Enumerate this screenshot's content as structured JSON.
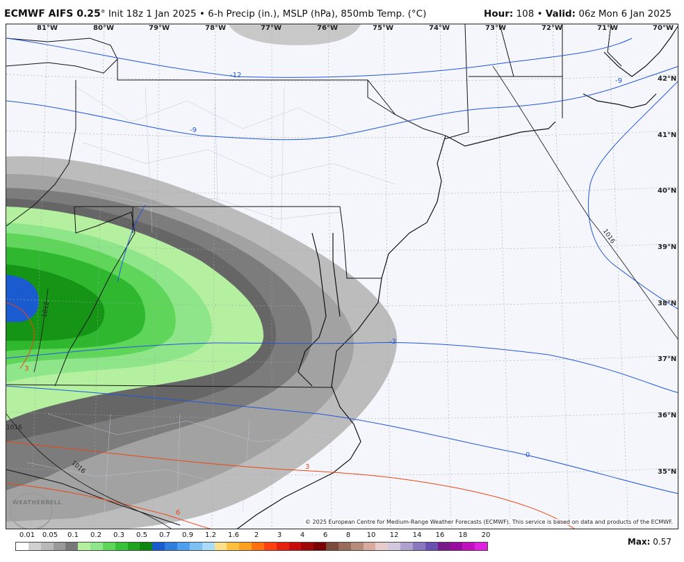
{
  "header": {
    "model": "ECMWF AIFS 0.25",
    "degree": "°",
    "subtitle": "Init 18z 1 Jan 2025 • 6-h Precip (in.), MSLP (hPa), 850mb Temp. (°C)",
    "hour_label": "Hour:",
    "hour_value": "108",
    "valid_label": "Valid:",
    "valid_value": "06z Mon 6 Jan 2025"
  },
  "lon_labels": [
    "81°W",
    "80°W",
    "79°W",
    "78°W",
    "77°W",
    "76°W",
    "75°W",
    "74°W",
    "73°W",
    "72°W",
    "71°W",
    "70°W"
  ],
  "lat_labels": [
    "42°N",
    "41°N",
    "40°N",
    "39°N",
    "38°N",
    "37°N",
    "36°N",
    "35°N"
  ],
  "contour_labels": {
    "temp_blue": [
      "-12",
      "-9",
      "-9",
      "-3",
      "0"
    ],
    "temp_red": [
      "3",
      "3",
      "6"
    ],
    "pressure": [
      "1016",
      "1016",
      "1012",
      "1016"
    ]
  },
  "copyright": "© 2025 European Centre for Medium-Range Weather Forecasts (ECMWF). This service is based on data and products of the ECMWF.",
  "logo": {
    "text": "WEATHERBELL"
  },
  "legend": {
    "ticks": [
      "0.01",
      "0.05",
      "0.1",
      "0.2",
      "0.3",
      "0.5",
      "0.7",
      "0.9",
      "1.2",
      "1.6",
      "2",
      "3",
      "4",
      "6",
      "8",
      "10",
      "12",
      "14",
      "16",
      "18",
      "20"
    ],
    "colors": [
      "#ffffff",
      "#d0d0d0",
      "#b8b8b8",
      "#9a9a9a",
      "#787878",
      "#b4f0a0",
      "#8fe68a",
      "#5fd65a",
      "#38c23a",
      "#1fa31f",
      "#0e860e",
      "#1a5ccf",
      "#2f7fe0",
      "#4ea0ee",
      "#7cc0f4",
      "#a8dcf8",
      "#ffe08a",
      "#ffc040",
      "#ffa020",
      "#ff7010",
      "#ff4010",
      "#e82010",
      "#c80c0c",
      "#a00808",
      "#7a0404",
      "#7a4a3a",
      "#9a6a5a",
      "#b88a7a",
      "#d8aaa0",
      "#e8cccc",
      "#d4c8e0",
      "#b0a0d0",
      "#8a78c0",
      "#6a50b0",
      "#7a1a8a",
      "#9a0ca0",
      "#c010c0",
      "#e020e0"
    ]
  },
  "max": {
    "label": "Max:",
    "value": "0.57"
  }
}
